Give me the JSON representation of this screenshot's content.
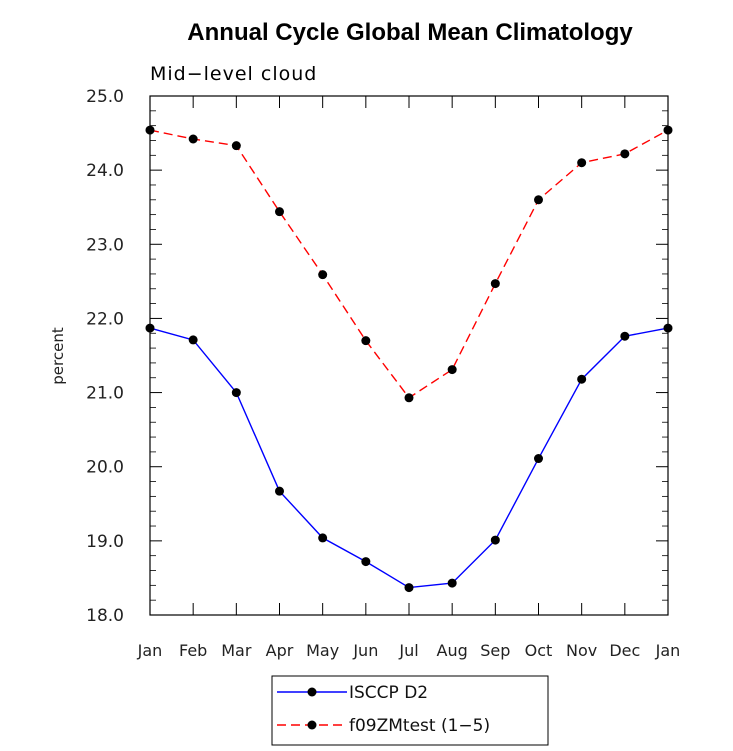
{
  "chart_data": {
    "type": "line",
    "title": "Annual Cycle Global Mean Climatology",
    "subtitle": "Mid−level cloud",
    "xlabel": "",
    "ylabel": "percent",
    "ylim": [
      18.0,
      25.0
    ],
    "y_ticks": [
      "18.0",
      "19.0",
      "20.0",
      "21.0",
      "22.0",
      "23.0",
      "24.0",
      "25.0"
    ],
    "categories": [
      "Jan",
      "Feb",
      "Mar",
      "Apr",
      "May",
      "Jun",
      "Jul",
      "Aug",
      "Sep",
      "Oct",
      "Nov",
      "Dec",
      "Jan"
    ],
    "grid": false,
    "legend_position": "bottom-center",
    "series": [
      {
        "name": "ISCCP D2",
        "color": "#0000ff",
        "dash": "solid",
        "marker": "circle",
        "values": [
          21.87,
          21.71,
          21.0,
          19.67,
          19.04,
          18.72,
          18.37,
          18.43,
          19.01,
          20.11,
          21.18,
          21.76,
          21.87
        ]
      },
      {
        "name": "f09ZMtest (1−5)",
        "color": "#ff0000",
        "dash": "dashed",
        "marker": "circle",
        "values": [
          24.54,
          24.42,
          24.33,
          23.44,
          22.59,
          21.7,
          20.93,
          21.31,
          22.47,
          23.6,
          24.1,
          24.22,
          24.54
        ]
      }
    ]
  }
}
